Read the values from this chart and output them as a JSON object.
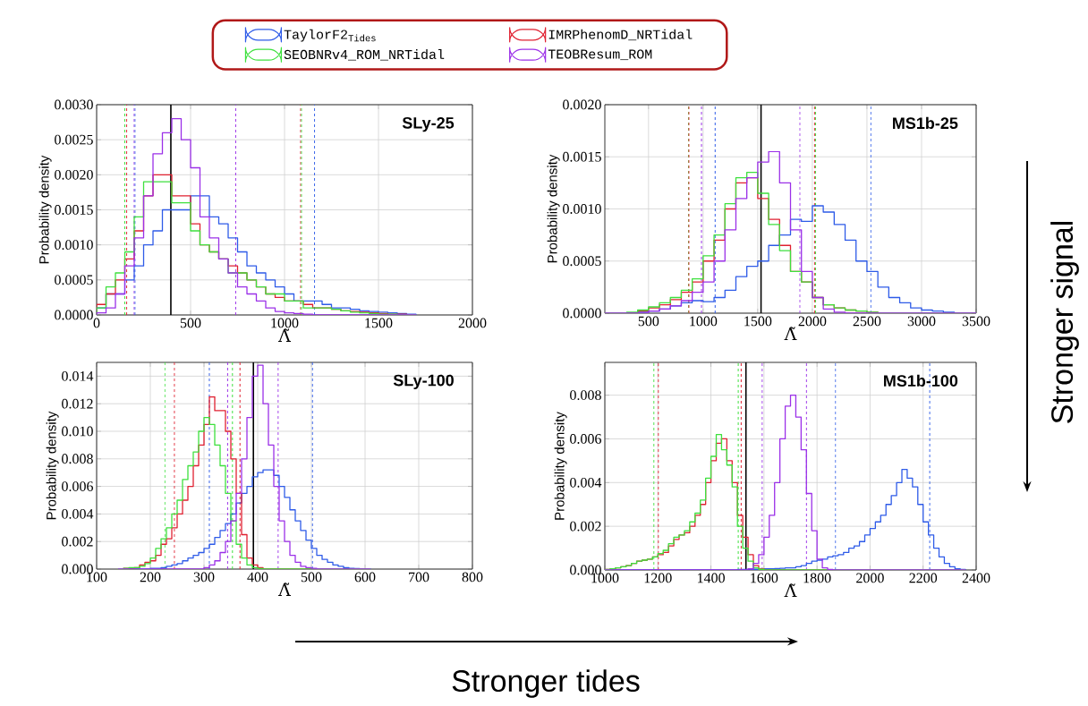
{
  "chart_data": [
    {
      "type": "histogram",
      "title": "SLy-25",
      "xlabel": "Λ̃",
      "ylabel": "Probability density",
      "legend": "top",
      "grid": true,
      "annotations": [
        "Stronger signal",
        "Stronger tides"
      ],
      "bins": [
        0,
        50,
        100,
        150,
        200,
        250,
        300,
        350,
        400,
        450,
        500,
        550,
        600,
        650,
        700,
        750,
        800,
        850,
        900,
        950,
        1000,
        1050,
        1100,
        1150,
        1200,
        1250,
        1300,
        1350,
        1400,
        1450,
        1500,
        1550,
        1600,
        1650,
        1700
      ],
      "xlim": [
        0,
        2000
      ],
      "xticks": [
        0,
        500,
        1000,
        1500,
        2000
      ],
      "ylim": [
        0,
        0.003
      ],
      "yticks": [
        {
          "value": 0,
          "label": "0.0000"
        },
        {
          "value": 0.0005,
          "label": "0.0005"
        },
        {
          "value": 0.001,
          "label": "0.0010"
        },
        {
          "value": 0.0015,
          "label": "0.0015"
        },
        {
          "value": 0.002,
          "label": "0.0020"
        },
        {
          "value": 0.0025,
          "label": "0.0025"
        },
        {
          "value": 0.003,
          "label": "0.0030"
        }
      ],
      "series": [
        {
          "name": "TaylorF2$_{Tides}$",
          "color": "#2e5be8",
          "values": [
            0.0001,
            0.0003,
            0.0003,
            0.0005,
            0.0007,
            0.001,
            0.0012,
            0.0015,
            0.0015,
            0.0015,
            0.0017,
            0.0017,
            0.0014,
            0.0013,
            0.0011,
            0.0009,
            0.0007,
            0.0006,
            0.0005,
            0.0004,
            0.0003,
            0.0002,
            0.0002,
            0.0002,
            0.00015,
            0.0001,
            0.0001,
            8e-05,
            6e-05,
            5e-05,
            4e-05,
            3e-05,
            2e-05,
            1e-05
          ]
        },
        {
          "name": "IMRPhenomD_NRTidal",
          "color": "#e02030",
          "values": [
            0.00015,
            0.0003,
            0.0005,
            0.0008,
            0.0012,
            0.0017,
            0.002,
            0.002,
            0.0017,
            0.0017,
            0.0013,
            0.001,
            0.0009,
            0.0008,
            0.0007,
            0.0006,
            0.0005,
            0.0004,
            0.0003,
            0.00025,
            0.0002,
            0.0002,
            0.00015,
            0.0001,
            0.0001,
            8e-05,
            6e-05,
            5e-05,
            4e-05,
            3e-05,
            2e-05,
            1e-05,
            1e-05,
            0
          ]
        },
        {
          "name": "SEOBNRv4_ROM_NRTidal",
          "color": "#3ee03e",
          "values": [
            0.0001,
            0.0004,
            0.0006,
            0.0009,
            0.0014,
            0.0019,
            0.0019,
            0.0019,
            0.0016,
            0.0016,
            0.0012,
            0.001,
            0.0009,
            0.0008,
            0.0006,
            0.0006,
            0.0005,
            0.0004,
            0.0003,
            0.0003,
            0.0002,
            0.0002,
            0.0001,
            0.0001,
            0.0001,
            8e-05,
            6e-05,
            4e-05,
            3e-05,
            2e-05,
            1e-05,
            1e-05,
            0,
            0
          ]
        },
        {
          "name": "TEOBResum_ROM",
          "color": "#9b30e8",
          "values": [
            3e-05,
            0.0001,
            0.0003,
            0.0007,
            0.0011,
            0.0017,
            0.0023,
            0.0026,
            0.0028,
            0.0025,
            0.0021,
            0.0014,
            0.0011,
            0.0008,
            0.0006,
            0.0004,
            0.0003,
            0.0002,
            0.0001,
            5e-05,
            3e-05,
            2e-05,
            1e-05,
            0,
            0,
            0,
            0,
            0,
            0,
            0,
            0,
            0,
            0,
            0
          ]
        }
      ],
      "ref_lines": [
        {
          "axis": "x",
          "value": 150,
          "color": "#3ee03e",
          "line_style": "dashed"
        },
        {
          "axis": "x",
          "value": 160,
          "color": "#e02030",
          "line_style": "dashed"
        },
        {
          "axis": "x",
          "value": 200,
          "color": "#9b30e8",
          "line_style": "dashed"
        },
        {
          "axis": "x",
          "value": 205,
          "color": "#2e5be8",
          "line_style": "dashed"
        },
        {
          "axis": "x",
          "value": 395,
          "color": "#000000",
          "line_style": "solid"
        },
        {
          "axis": "x",
          "value": 740,
          "color": "#9b30e8",
          "line_style": "dashed"
        },
        {
          "axis": "x",
          "value": 1085,
          "color": "#e02030",
          "line_style": "dashed"
        },
        {
          "axis": "x",
          "value": 1090,
          "color": "#3ee03e",
          "line_style": "dashed"
        },
        {
          "axis": "x",
          "value": 1160,
          "color": "#2e5be8",
          "line_style": "dashed"
        }
      ]
    },
    {
      "type": "histogram",
      "title": "MS1b-25",
      "xlabel": "Λ̃",
      "ylabel": "Probability density",
      "grid": true,
      "bins": [
        100,
        200,
        300,
        400,
        500,
        600,
        700,
        800,
        900,
        1000,
        1100,
        1200,
        1300,
        1400,
        1500,
        1600,
        1700,
        1800,
        1900,
        2000,
        2100,
        2200,
        2300,
        2400,
        2500,
        2600,
        2700,
        2800,
        2900,
        3000,
        3100,
        3200,
        3300,
        3400,
        3500
      ],
      "xlim": [
        100,
        3500
      ],
      "xticks": [
        500,
        1000,
        1500,
        2000,
        2500,
        3000,
        3500
      ],
      "ylim": [
        0,
        0.002
      ],
      "yticks": [
        {
          "value": 0,
          "label": "0.0000"
        },
        {
          "value": 0.0005,
          "label": "0.0005"
        },
        {
          "value": 0.001,
          "label": "0.0010"
        },
        {
          "value": 0.0015,
          "label": "0.0015"
        },
        {
          "value": 0.002,
          "label": "0.0020"
        }
      ],
      "series": [
        {
          "color": "#2e5be8",
          "values": [
            0,
            0,
            0,
            1e-05,
            2e-05,
            4e-05,
            7e-05,
            0.0001,
            0.00012,
            0.00011,
            0.00015,
            0.00022,
            0.00035,
            0.00045,
            0.0005,
            0.00065,
            0.00075,
            0.0009,
            0.00088,
            0.00103,
            0.00097,
            0.00085,
            0.0007,
            0.0005,
            0.0004,
            0.00025,
            0.00015,
            0.0001,
            5e-05,
            3e-05,
            2e-05,
            1e-05,
            0,
            0
          ]
        },
        {
          "color": "#e02030",
          "values": [
            0,
            0,
            0,
            2e-05,
            5e-05,
            8e-05,
            0.00013,
            0.0002,
            0.0003,
            0.0005,
            0.0007,
            0.001,
            0.00125,
            0.0013,
            0.0011,
            0.0009,
            0.00065,
            0.0004,
            0.0003,
            0.00015,
            8e-05,
            5e-05,
            3e-05,
            2e-05,
            1e-05,
            0,
            0,
            0,
            0,
            0,
            0,
            0,
            0,
            0
          ]
        },
        {
          "color": "#3ee03e",
          "values": [
            0,
            0,
            1e-05,
            3e-05,
            6e-05,
            0.0001,
            0.00015,
            0.00022,
            0.00033,
            0.00055,
            0.00075,
            0.00105,
            0.0013,
            0.00135,
            0.00115,
            0.00085,
            0.0006,
            0.0004,
            0.0003,
            0.00015,
            8e-05,
            5e-05,
            3e-05,
            2e-05,
            1e-05,
            0,
            0,
            0,
            0,
            0,
            0,
            0,
            0,
            0
          ]
        },
        {
          "color": "#9b30e8",
          "values": [
            0,
            0,
            0,
            0,
            2e-05,
            4e-05,
            7e-05,
            0.00012,
            0.0002,
            0.0003,
            0.0005,
            0.0008,
            0.0011,
            0.0013,
            0.00145,
            0.00155,
            0.00125,
            0.0008,
            0.0004,
            0.00015,
            4e-05,
            1e-05,
            0,
            0,
            0,
            0,
            0,
            0,
            0,
            0,
            0,
            0,
            0,
            0
          ]
        }
      ],
      "ref_lines": [
        {
          "axis": "x",
          "value": 865,
          "color": "#3ee03e",
          "line_style": "dashed"
        },
        {
          "axis": "x",
          "value": 870,
          "color": "#e02030",
          "line_style": "dashed"
        },
        {
          "axis": "x",
          "value": 985,
          "color": "#9b30e8",
          "line_style": "dashed"
        },
        {
          "axis": "x",
          "value": 1110,
          "color": "#2e5be8",
          "line_style": "dashed"
        },
        {
          "axis": "x",
          "value": 1530,
          "color": "#000000",
          "line_style": "solid"
        },
        {
          "axis": "x",
          "value": 1885,
          "color": "#9b30e8",
          "line_style": "dashed"
        },
        {
          "axis": "x",
          "value": 2020,
          "color": "#e02030",
          "line_style": "dashed"
        },
        {
          "axis": "x",
          "value": 2030,
          "color": "#3ee03e",
          "line_style": "dashed"
        },
        {
          "axis": "x",
          "value": 2535,
          "color": "#2e5be8",
          "line_style": "dashed"
        }
      ]
    },
    {
      "type": "histogram",
      "title": "SLy-100",
      "xlabel": "Λ̃",
      "ylabel": "Probability density",
      "grid": true,
      "bins": [
        140,
        150,
        160,
        170,
        180,
        190,
        200,
        210,
        220,
        230,
        240,
        250,
        260,
        270,
        280,
        290,
        300,
        310,
        320,
        330,
        340,
        350,
        360,
        370,
        380,
        390,
        400,
        410,
        420,
        430,
        440,
        450,
        460,
        470,
        480,
        490,
        500,
        510,
        520,
        530,
        540,
        550,
        560,
        570,
        580,
        590,
        600,
        610
      ],
      "xlim": [
        100,
        800
      ],
      "xticks": [
        100,
        200,
        300,
        400,
        500,
        600,
        700,
        800
      ],
      "ylim": [
        0,
        0.015
      ],
      "yticks": [
        {
          "value": 0,
          "label": "0.000"
        },
        {
          "value": 0.002,
          "label": "0.002"
        },
        {
          "value": 0.004,
          "label": "0.004"
        },
        {
          "value": 0.006,
          "label": "0.006"
        },
        {
          "value": 0.008,
          "label": "0.008"
        },
        {
          "value": 0.01,
          "label": "0.010"
        },
        {
          "value": 0.012,
          "label": "0.012"
        },
        {
          "value": 0.014,
          "label": "0.014"
        }
      ],
      "series": [
        {
          "color": "#2e5be8",
          "values": [
            0,
            0,
            0,
            0,
            0,
            0,
            5e-05,
            5e-05,
            0.0001,
            0.0002,
            0.0003,
            0.0004,
            0.0006,
            0.0008,
            0.001,
            0.0012,
            0.0015,
            0.0018,
            0.0023,
            0.0028,
            0.0033,
            0.004,
            0.0048,
            0.0055,
            0.006,
            0.0067,
            0.007,
            0.0072,
            0.0072,
            0.0068,
            0.006,
            0.0052,
            0.0043,
            0.0035,
            0.0028,
            0.0021,
            0.0015,
            0.001,
            0.0007,
            0.0005,
            0.0003,
            0.0002,
            0.0001,
            5e-05,
            3e-05,
            1e-05,
            1e-05
          ]
        },
        {
          "color": "#e02030",
          "values": [
            0,
            5e-05,
            5e-05,
            0.0001,
            0.0003,
            0.0005,
            0.0006,
            0.001,
            0.0018,
            0.0022,
            0.003,
            0.004,
            0.005,
            0.006,
            0.0075,
            0.009,
            0.0105,
            0.0125,
            0.0115,
            0.0115,
            0.01,
            0.008,
            0.0055,
            0.0025,
            0.0008,
            0.0003,
            0.0001,
            0,
            0,
            0,
            0,
            0,
            0,
            0,
            0,
            0,
            0,
            0,
            0,
            0,
            0,
            0,
            0,
            0,
            0,
            0,
            0
          ]
        },
        {
          "color": "#3ee03e",
          "values": [
            0,
            5e-05,
            0.0001,
            0.0001,
            0.0002,
            0.0004,
            0.0008,
            0.0015,
            0.0022,
            0.003,
            0.004,
            0.005,
            0.0065,
            0.0075,
            0.0085,
            0.01,
            0.011,
            0.0105,
            0.009,
            0.0075,
            0.0055,
            0.0035,
            0.0018,
            0.0008,
            0.0003,
            0.0001,
            3e-05,
            0,
            0,
            0,
            0,
            0,
            0,
            0,
            0,
            0,
            0,
            0,
            0,
            0,
            0,
            0,
            0,
            0,
            0,
            0,
            0
          ]
        },
        {
          "color": "#9b30e8",
          "values": [
            0,
            0,
            0,
            0,
            0,
            0,
            0,
            0,
            0,
            0,
            0,
            0,
            0,
            0,
            0,
            0,
            0.0001,
            0.0003,
            0.0006,
            0.0012,
            0.002,
            0.0035,
            0.0055,
            0.008,
            0.011,
            0.014,
            0.0148,
            0.012,
            0.009,
            0.006,
            0.0035,
            0.002,
            0.001,
            0.0005,
            0.0002,
            0.0001,
            5e-05,
            0,
            0,
            0,
            0,
            0,
            0,
            0,
            0,
            0,
            0
          ]
        }
      ],
      "ref_lines": [
        {
          "axis": "x",
          "value": 227,
          "color": "#3ee03e",
          "line_style": "dashed"
        },
        {
          "axis": "x",
          "value": 245,
          "color": "#e02030",
          "line_style": "dashed"
        },
        {
          "axis": "x",
          "value": 310,
          "color": "#2e5be8",
          "line_style": "dashed"
        },
        {
          "axis": "x",
          "value": 344,
          "color": "#9b30e8",
          "line_style": "dashed"
        },
        {
          "axis": "x",
          "value": 353,
          "color": "#3ee03e",
          "line_style": "dashed"
        },
        {
          "axis": "x",
          "value": 367,
          "color": "#e02030",
          "line_style": "dashed"
        },
        {
          "axis": "x",
          "value": 392,
          "color": "#000000",
          "line_style": "solid"
        },
        {
          "axis": "x",
          "value": 438,
          "color": "#9b30e8",
          "line_style": "dashed"
        },
        {
          "axis": "x",
          "value": 502,
          "color": "#2e5be8",
          "line_style": "dashed"
        }
      ]
    },
    {
      "type": "histogram",
      "title": "MS1b-100",
      "xlabel": "Λ̃",
      "ylabel": "Probability density",
      "grid": true,
      "bins": [
        1000,
        1020,
        1040,
        1060,
        1080,
        1100,
        1120,
        1140,
        1160,
        1180,
        1200,
        1220,
        1240,
        1260,
        1280,
        1300,
        1320,
        1340,
        1360,
        1380,
        1400,
        1420,
        1440,
        1460,
        1480,
        1500,
        1520,
        1540,
        1560,
        1580,
        1600,
        1620,
        1640,
        1660,
        1680,
        1700,
        1720,
        1740,
        1760,
        1780,
        1800,
        1820,
        1840,
        1860,
        1880,
        1900,
        1920,
        1940,
        1960,
        1980,
        2000,
        2020,
        2040,
        2060,
        2080,
        2100,
        2120,
        2140,
        2160,
        2180,
        2200,
        2220,
        2240,
        2260,
        2280,
        2300,
        2320,
        2340,
        2360
      ],
      "xlim": [
        1000,
        2400
      ],
      "xticks": [
        1000,
        1200,
        1400,
        1600,
        1800,
        2000,
        2200,
        2400
      ],
      "ylim": [
        0,
        0.0095
      ],
      "yticks": [
        {
          "value": 0,
          "label": "0.000"
        },
        {
          "value": 0.002,
          "label": "0.002"
        },
        {
          "value": 0.004,
          "label": "0.004"
        },
        {
          "value": 0.006,
          "label": "0.006"
        },
        {
          "value": 0.008,
          "label": "0.008"
        }
      ],
      "series": [
        {
          "color": "#2e5be8",
          "values": [
            0,
            0,
            0,
            0,
            0,
            0,
            0,
            0,
            0,
            0,
            0,
            0,
            0,
            0,
            0,
            0,
            0,
            0,
            0,
            0,
            0,
            0,
            0,
            0,
            0,
            2e-05,
            2e-05,
            3e-05,
            3e-05,
            4e-05,
            5e-05,
            5e-05,
            6e-05,
            8e-05,
            0.0001,
            0.0001,
            0.00015,
            0.0002,
            0.0003,
            0.0004,
            0.00045,
            0.0005,
            0.0006,
            0.00065,
            0.0007,
            0.0008,
            0.001,
            0.0011,
            0.0013,
            0.0016,
            0.0019,
            0.0022,
            0.0025,
            0.003,
            0.0034,
            0.004,
            0.0046,
            0.0042,
            0.0038,
            0.003,
            0.0022,
            0.0016,
            0.001,
            0.0006,
            0.0003,
            0.00015,
            5e-05,
            2e-05
          ]
        },
        {
          "color": "#e02030",
          "values": [
            2e-05,
            5e-05,
            0.0001,
            0.00015,
            0.0002,
            0.0003,
            0.0004,
            0.00045,
            0.0005,
            0.0006,
            0.0007,
            0.0008,
            0.0011,
            0.0014,
            0.0016,
            0.0017,
            0.002,
            0.0025,
            0.003,
            0.004,
            0.005,
            0.0058,
            0.006,
            0.005,
            0.004,
            0.0025,
            0.0015,
            0.0007,
            0.0002,
            5e-05,
            0,
            0,
            0,
            0,
            0,
            0,
            0,
            0,
            0,
            0,
            0,
            0,
            0,
            0,
            0,
            0,
            0,
            0,
            0,
            0,
            0,
            0,
            0,
            0,
            0,
            0,
            0,
            0,
            0,
            0,
            0,
            0,
            0,
            0,
            0,
            0,
            0,
            0
          ]
        },
        {
          "color": "#3ee03e",
          "values": [
            2e-05,
            5e-05,
            0.0001,
            0.00015,
            0.0002,
            0.0003,
            0.0004,
            0.00045,
            0.0005,
            0.0006,
            0.00075,
            0.0009,
            0.0012,
            0.0015,
            0.0016,
            0.0018,
            0.0022,
            0.0026,
            0.0032,
            0.0042,
            0.0052,
            0.0062,
            0.0055,
            0.0048,
            0.0038,
            0.002,
            0.001,
            0.0004,
            0.0001,
            3e-05,
            0,
            0,
            0,
            0,
            0,
            0,
            0,
            0,
            0,
            0,
            0,
            0,
            0,
            0,
            0,
            0,
            0,
            0,
            0,
            0,
            0,
            0,
            0,
            0,
            0,
            0,
            0,
            0,
            0,
            0,
            0,
            0,
            0,
            0,
            0,
            0,
            0,
            0
          ]
        },
        {
          "color": "#9b30e8",
          "values": [
            0,
            0,
            0,
            0,
            0,
            0,
            0,
            0,
            0,
            0,
            0,
            0,
            0,
            0,
            0,
            0,
            0,
            0,
            0,
            0,
            0,
            0,
            0,
            0,
            0,
            0,
            0,
            5e-05,
            0.0003,
            0.0007,
            0.0015,
            0.0025,
            0.004,
            0.006,
            0.0075,
            0.008,
            0.007,
            0.0055,
            0.0035,
            0.0018,
            0.0005,
            0.0001,
            2e-05,
            0,
            0,
            0,
            0,
            0,
            0,
            0,
            0,
            0,
            0,
            0,
            0,
            0,
            0,
            0,
            0,
            0,
            0,
            0,
            0,
            0,
            0,
            0,
            0,
            0
          ]
        }
      ],
      "ref_lines": [
        {
          "axis": "x",
          "value": 1185,
          "color": "#3ee03e",
          "line_style": "dashed"
        },
        {
          "axis": "x",
          "value": 1202,
          "color": "#e02030",
          "line_style": "dashed"
        },
        {
          "axis": "x",
          "value": 1503,
          "color": "#3ee03e",
          "line_style": "dashed"
        },
        {
          "axis": "x",
          "value": 1514,
          "color": "#e02030",
          "line_style": "dashed"
        },
        {
          "axis": "x",
          "value": 1532,
          "color": "#000000",
          "line_style": "solid"
        },
        {
          "axis": "x",
          "value": 1593,
          "color": "#9b30e8",
          "line_style": "dashed"
        },
        {
          "axis": "x",
          "value": 1760,
          "color": "#9b30e8",
          "line_style": "dashed"
        },
        {
          "axis": "x",
          "value": 1870,
          "color": "#2e5be8",
          "line_style": "dashed"
        },
        {
          "axis": "x",
          "value": 2225,
          "color": "#2e5be8",
          "line_style": "dashed"
        }
      ]
    }
  ]
}
